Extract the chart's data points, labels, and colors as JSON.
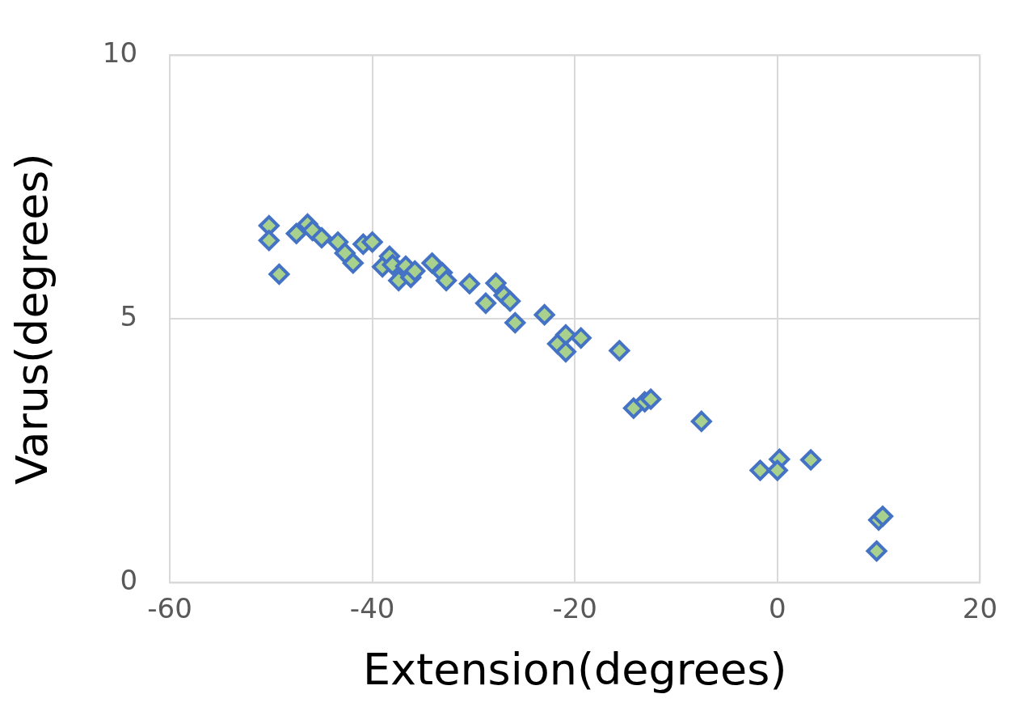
{
  "chart_data": {
    "type": "scatter",
    "xlabel": "Extension(degrees)",
    "ylabel": "Varus(degrees)",
    "xlim": [
      -60,
      20
    ],
    "xticks": [
      -60,
      -40,
      -20,
      0,
      20
    ],
    "ylim": [
      0,
      10
    ],
    "yticks": [
      0,
      5,
      10
    ],
    "grid": true,
    "marker": "diamond",
    "series": [
      {
        "color": "#4472c4",
        "x": [
          -50.2,
          -50.2,
          -49.2,
          -47.5,
          -46.4,
          -45.9,
          -45.0,
          -43.4,
          -42.7,
          -41.9,
          -40.9,
          -40.0,
          -39.0,
          -38.3,
          -38.0,
          -37.4,
          -36.7,
          -36.2,
          -35.8,
          -34.1,
          -33.1,
          -32.7,
          -30.4,
          -28.8,
          -27.8,
          -27.0,
          -26.4,
          -25.9,
          -23.0,
          -21.7,
          -20.9,
          -20.9,
          -19.4,
          -15.6,
          -14.2,
          -13.1,
          -12.5,
          -7.5,
          -1.7,
          0.2,
          0,
          3.3,
          10.0,
          10.4,
          9.8
        ],
        "values": [
          6.77,
          6.49,
          5.85,
          6.62,
          6.8,
          6.68,
          6.54,
          6.46,
          6.25,
          6.06,
          6.42,
          6.46,
          5.99,
          6.19,
          6.03,
          5.73,
          6.0,
          5.79,
          5.91,
          6.06,
          5.88,
          5.73,
          5.67,
          5.3,
          5.68,
          5.45,
          5.34,
          4.93,
          5.08,
          4.53,
          4.7,
          4.38,
          4.64,
          4.4,
          3.31,
          3.43,
          3.48,
          3.06,
          2.13,
          2.34,
          2.13,
          2.33,
          1.19,
          1.26,
          0.6
        ]
      }
    ]
  }
}
